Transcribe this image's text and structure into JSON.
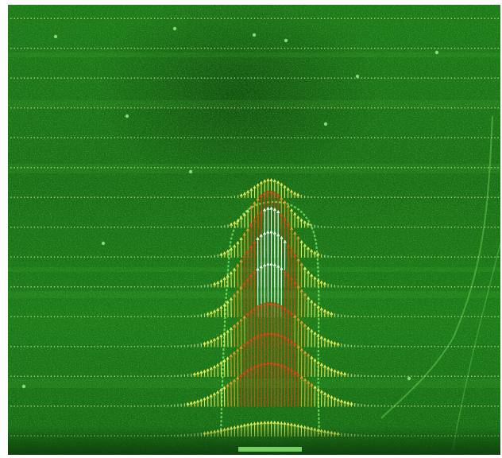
{
  "image": {
    "subject": "piv-velocity-vector-field",
    "icon": "vector-field-overlay"
  },
  "colors": {
    "background_green": "#1a7016",
    "speckle_green": "#5fd24a",
    "vector_white": "#ffffff",
    "vector_yellow": "#f2f05a",
    "vector_orange": "#ff9a20",
    "vector_red": "#ff3a10",
    "jet_outline": "#7ff06a",
    "bottom_shadow": "#0f3d0c"
  }
}
